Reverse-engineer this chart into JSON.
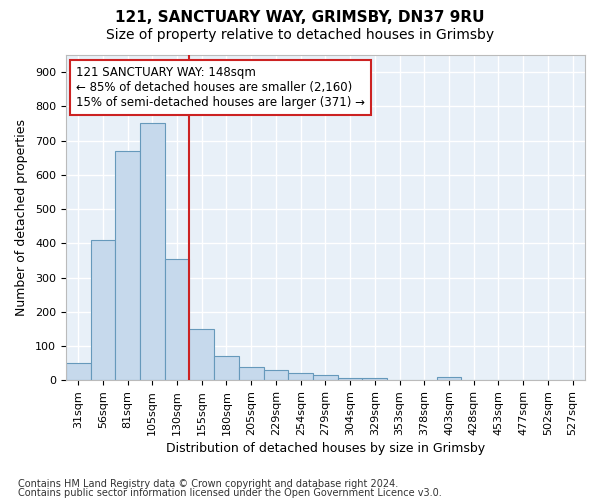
{
  "title1": "121, SANCTUARY WAY, GRIMSBY, DN37 9RU",
  "title2": "Size of property relative to detached houses in Grimsby",
  "xlabel": "Distribution of detached houses by size in Grimsby",
  "ylabel": "Number of detached properties",
  "footnote1": "Contains HM Land Registry data © Crown copyright and database right 2024.",
  "footnote2": "Contains public sector information licensed under the Open Government Licence v3.0.",
  "categories": [
    "31sqm",
    "56sqm",
    "81sqm",
    "105sqm",
    "130sqm",
    "155sqm",
    "180sqm",
    "205sqm",
    "229sqm",
    "254sqm",
    "279sqm",
    "304sqm",
    "329sqm",
    "353sqm",
    "378sqm",
    "403sqm",
    "428sqm",
    "453sqm",
    "477sqm",
    "502sqm",
    "527sqm"
  ],
  "values": [
    50,
    410,
    670,
    750,
    355,
    150,
    70,
    38,
    30,
    20,
    15,
    5,
    5,
    0,
    0,
    8,
    0,
    0,
    0,
    0,
    0
  ],
  "bar_color": "#c6d9ec",
  "bar_edge_color": "#6699bb",
  "vline_x": 4.5,
  "vline_color": "#cc2222",
  "annotation_line1": "121 SANCTUARY WAY: 148sqm",
  "annotation_line2": "← 85% of detached houses are smaller (2,160)",
  "annotation_line3": "15% of semi-detached houses are larger (371) →",
  "ylim_max": 950,
  "yticks": [
    0,
    100,
    200,
    300,
    400,
    500,
    600,
    700,
    800,
    900
  ],
  "plot_bg": "#e8f0f8",
  "fig_bg": "#ffffff",
  "grid_color": "#ffffff",
  "title1_fontsize": 11,
  "title2_fontsize": 10,
  "axis_label_fontsize": 9,
  "tick_fontsize": 8,
  "annot_fontsize": 8.5,
  "footnote_fontsize": 7
}
